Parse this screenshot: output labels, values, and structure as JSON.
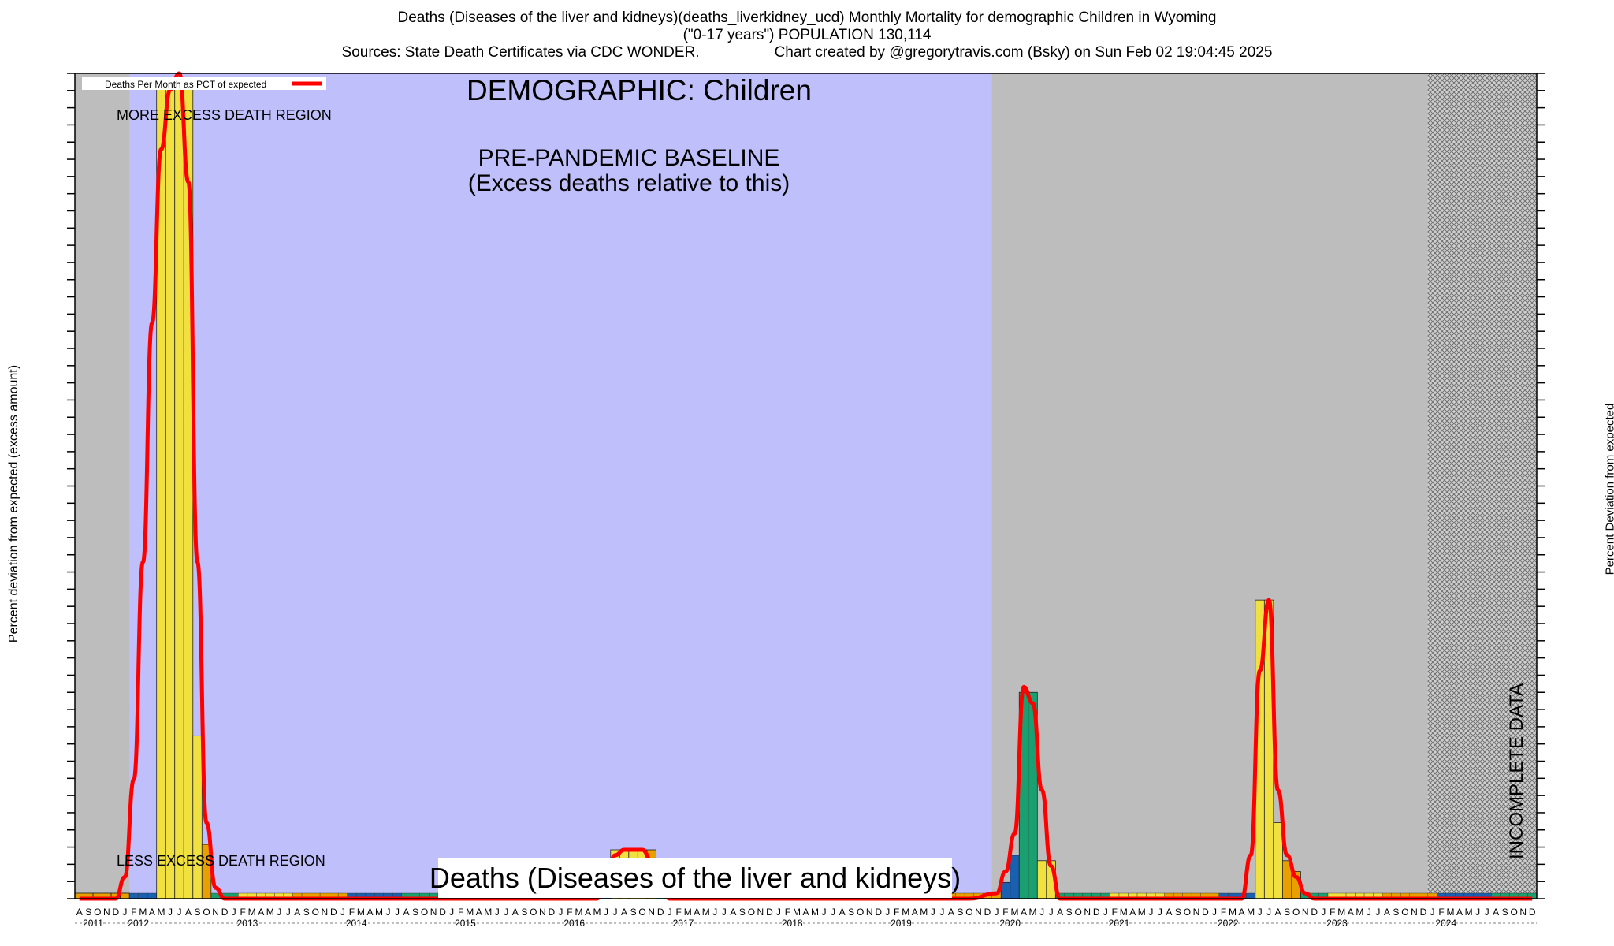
{
  "header": {
    "title_line1": "Deaths (Diseases of the liver and kidneys)(deaths_liverkidney_ucd) Monthly Mortality for demographic Children in Wyoming",
    "title_line2": "(\"0-17 years\") POPULATION 130,114",
    "title_line3": "Sources: State Death Certificates via CDC WONDER.                  Chart created by @gregorytravis.com (Bsky) on Sun Feb 02 19:04:45 2025"
  },
  "annotations": {
    "demographic": "DEMOGRAPHIC: Children",
    "baseline_line1": "PRE-PANDEMIC BASELINE",
    "baseline_line2": "(Excess deaths relative to this)",
    "more_excess": "MORE EXCESS DEATH REGION",
    "less_excess": "LESS EXCESS DEATH REGION",
    "incomplete": "INCOMPLETE DATA",
    "bottom_label": "Deaths (Diseases of the liver and kidneys)"
  },
  "colors": {
    "baseline_region": "#bfbffc",
    "outside_region": "#bdbdbd",
    "incomplete_hatch": "#a0a0a0",
    "line": "#ff0000",
    "bar_yellow": "#f0e040",
    "bar_orange": "#e8a000",
    "bar_green": "#1aa070",
    "bar_blue": "#1a60b0"
  },
  "chart_data": {
    "type": "bar",
    "title": "Deaths (Diseases of the liver and kidneys)(deaths_liverkidney_ucd) Monthly Mortality for demographic Children in Wyoming",
    "ylabel_left": "Percent deviation from expected (excess amount)",
    "ylabel_right": "Percent Deviation from expected",
    "legend": {
      "label": "Deaths Per Month as PCT of expected",
      "placement": "top-left"
    },
    "grid": false,
    "x_start": "2011-08",
    "x_end": "2024-12",
    "month_letters": [
      "J",
      "F",
      "M",
      "A",
      "M",
      "J",
      "J",
      "A",
      "S",
      "O",
      "N",
      "D"
    ],
    "year_labels": [
      "2011",
      "2012",
      "2013",
      "2014",
      "2015",
      "2016",
      "2017",
      "2018",
      "2019",
      "2020",
      "2021",
      "2022",
      "2023",
      "2024"
    ],
    "baseline_period": [
      "2012-02",
      "2019-12"
    ],
    "incomplete_period": [
      "2024-01",
      "2024-12"
    ],
    "ylim": [
      -100,
      7500
    ],
    "bars": [
      {
        "month": "2011-08",
        "value": -100,
        "color": "orange"
      },
      {
        "month": "2011-09",
        "value": -100,
        "color": "orange"
      },
      {
        "month": "2011-10",
        "value": -100,
        "color": "orange"
      },
      {
        "month": "2011-11",
        "value": -100,
        "color": "orange"
      },
      {
        "month": "2011-12",
        "value": -100,
        "color": "orange"
      },
      {
        "month": "2012-01",
        "value": -100,
        "color": "orange"
      },
      {
        "month": "2012-05",
        "value": 7400,
        "color": "yellow"
      },
      {
        "month": "2012-06",
        "value": 7400,
        "color": "yellow"
      },
      {
        "month": "2012-07",
        "value": 7400,
        "color": "yellow"
      },
      {
        "month": "2012-08",
        "value": 7400,
        "color": "yellow"
      },
      {
        "month": "2012-09",
        "value": 1400,
        "color": "yellow"
      },
      {
        "month": "2012-10",
        "value": 400,
        "color": "orange"
      },
      {
        "month": "2016-07",
        "value": 350,
        "color": "yellow"
      },
      {
        "month": "2016-08",
        "value": 350,
        "color": "yellow"
      },
      {
        "month": "2016-09",
        "value": 350,
        "color": "yellow"
      },
      {
        "month": "2016-10",
        "value": 350,
        "color": "yellow"
      },
      {
        "month": "2016-11",
        "value": 350,
        "color": "orange"
      },
      {
        "month": "2020-02",
        "value": 50,
        "color": "blue"
      },
      {
        "month": "2020-03",
        "value": 300,
        "color": "blue"
      },
      {
        "month": "2020-04",
        "value": 1800,
        "color": "green"
      },
      {
        "month": "2020-05",
        "value": 1800,
        "color": "green"
      },
      {
        "month": "2020-06",
        "value": 250,
        "color": "yellow"
      },
      {
        "month": "2020-07",
        "value": 250,
        "color": "yellow"
      },
      {
        "month": "2022-06",
        "value": 2650,
        "color": "yellow"
      },
      {
        "month": "2022-07",
        "value": 2650,
        "color": "yellow"
      },
      {
        "month": "2022-08",
        "value": 600,
        "color": "yellow"
      },
      {
        "month": "2022-09",
        "value": 250,
        "color": "orange"
      },
      {
        "month": "2022-10",
        "value": 150,
        "color": "orange"
      }
    ],
    "series": [
      {
        "name": "Deaths Per Month as PCT of expected",
        "points": [
          [
            "2011-08",
            -100
          ],
          [
            "2011-12",
            -100
          ],
          [
            "2012-01",
            100
          ],
          [
            "2012-02",
            1000
          ],
          [
            "2012-03",
            3000
          ],
          [
            "2012-04",
            5200
          ],
          [
            "2012-05",
            6800
          ],
          [
            "2012-06",
            7350
          ],
          [
            "2012-07",
            7500
          ],
          [
            "2012-08",
            6500
          ],
          [
            "2012-09",
            3000
          ],
          [
            "2012-10",
            600
          ],
          [
            "2012-11",
            0
          ],
          [
            "2012-12",
            -100
          ],
          [
            "2016-05",
            -100
          ],
          [
            "2016-06",
            100
          ],
          [
            "2016-07",
            300
          ],
          [
            "2016-08",
            350
          ],
          [
            "2016-09",
            350
          ],
          [
            "2016-10",
            350
          ],
          [
            "2016-11",
            250
          ],
          [
            "2016-12",
            0
          ],
          [
            "2017-01",
            -100
          ],
          [
            "2019-10",
            -100
          ],
          [
            "2020-01",
            -50
          ],
          [
            "2020-02",
            150
          ],
          [
            "2020-03",
            500
          ],
          [
            "2020-04",
            1850
          ],
          [
            "2020-05",
            1700
          ],
          [
            "2020-06",
            900
          ],
          [
            "2020-07",
            200
          ],
          [
            "2020-08",
            -100
          ],
          [
            "2022-04",
            -100
          ],
          [
            "2022-05",
            300
          ],
          [
            "2022-06",
            2000
          ],
          [
            "2022-07",
            2650
          ],
          [
            "2022-08",
            900
          ],
          [
            "2022-09",
            300
          ],
          [
            "2022-10",
            100
          ],
          [
            "2022-11",
            -50
          ],
          [
            "2022-12",
            -100
          ],
          [
            "2024-12",
            -100
          ]
        ]
      }
    ]
  }
}
